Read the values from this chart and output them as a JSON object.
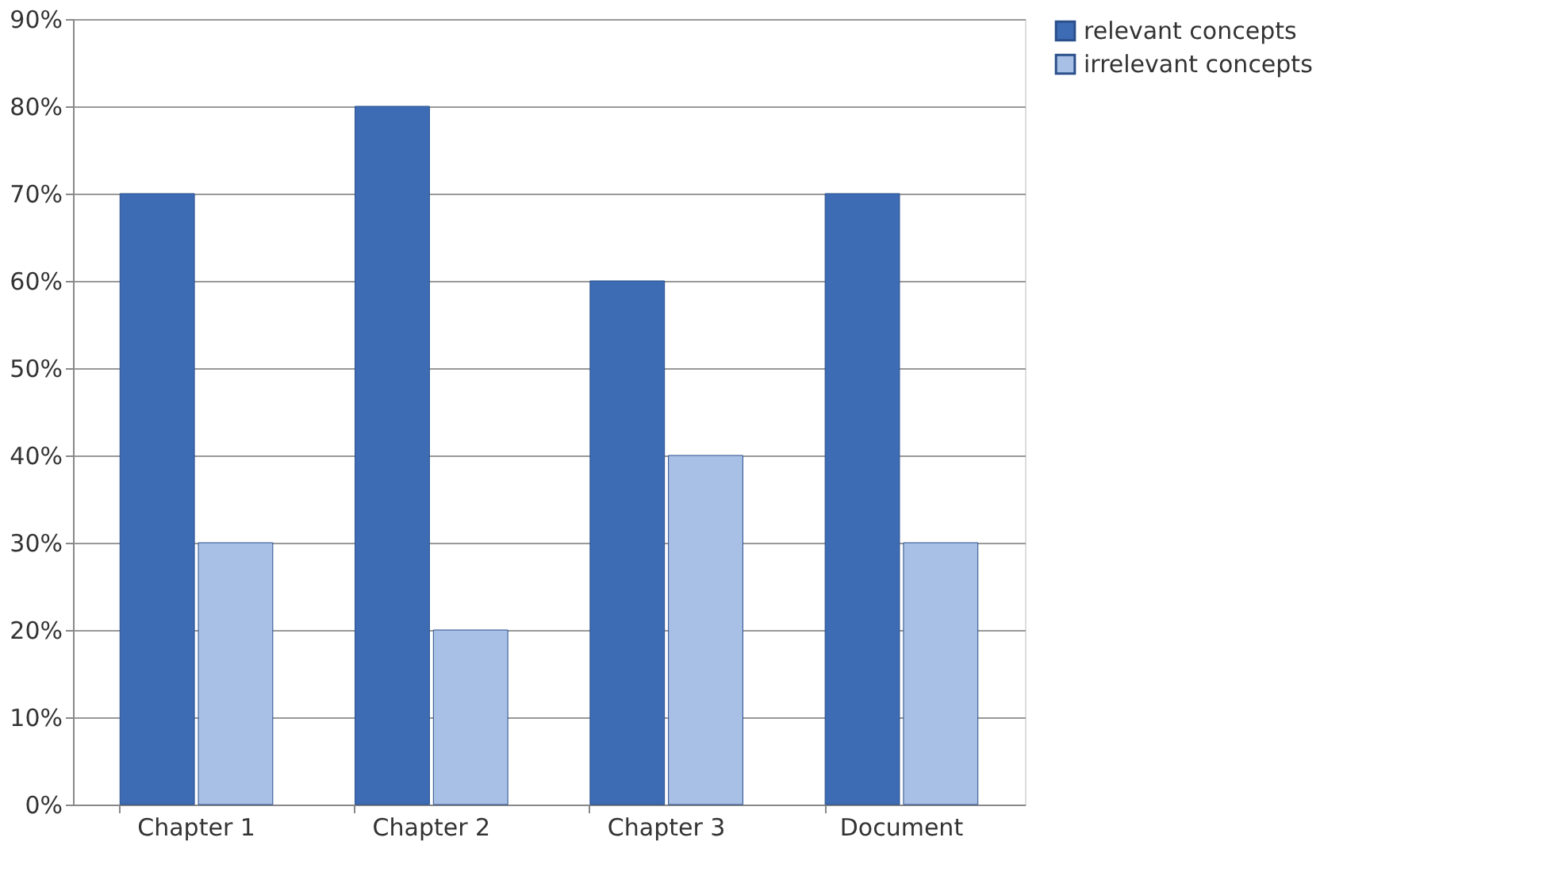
{
  "chart_data": {
    "type": "bar",
    "categories": [
      "Chapter 1",
      "Chapter 2",
      "Chapter 3",
      "Document"
    ],
    "series": [
      {
        "name": "relevant concepts",
        "color": "#3d6cb5",
        "values": [
          70,
          80,
          60,
          70
        ]
      },
      {
        "name": "irrelevant concepts",
        "color": "#a9c0e6",
        "values": [
          30,
          20,
          40,
          30
        ]
      }
    ],
    "ylim": [
      0,
      90
    ],
    "yticks": [
      {
        "value": 0,
        "label": "0%"
      },
      {
        "value": 10,
        "label": "10%"
      },
      {
        "value": 20,
        "label": "20%"
      },
      {
        "value": 30,
        "label": "30%"
      },
      {
        "value": 40,
        "label": "40%"
      },
      {
        "value": 50,
        "label": "50%"
      },
      {
        "value": 60,
        "label": "60%"
      },
      {
        "value": 70,
        "label": "70%"
      },
      {
        "value": 80,
        "label": "80%"
      },
      {
        "value": 90,
        "label": "90%"
      }
    ],
    "grid": "y",
    "legend": "right"
  }
}
